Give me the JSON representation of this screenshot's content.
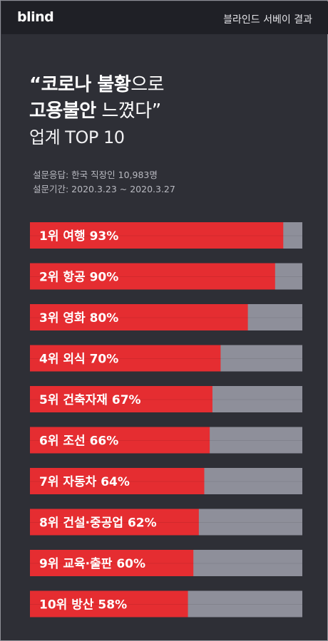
{
  "header": {
    "logo": "blind",
    "title": "블라인드 서베이 결과"
  },
  "headline": {
    "line1_bold": "“코로나 불황",
    "line1_rest": "으로",
    "line2_bold": "고용불안",
    "line2_rest": " 느꼈다”",
    "line3": "업계 TOP 10"
  },
  "survey": {
    "respondents": "설문응답: 한국 직장인 10,983명",
    "period": "설문기간: 2020.3.23 ~ 2020.3.27"
  },
  "colors": {
    "bar": "#e52d31",
    "bar_bg": "#8e8f9a",
    "background": "#2e2f36"
  },
  "chart_data": {
    "type": "bar",
    "orientation": "horizontal",
    "categories": [
      "여행",
      "항공",
      "영화",
      "외식",
      "건축자재",
      "조선",
      "자동차",
      "건설·중공업",
      "교육·출판",
      "방산"
    ],
    "ranks": [
      "1위",
      "2위",
      "3위",
      "4위",
      "5위",
      "6위",
      "7위",
      "8위",
      "9위",
      "10위"
    ],
    "values": [
      93,
      90,
      80,
      70,
      67,
      66,
      64,
      62,
      60,
      58
    ],
    "labels": [
      "1위  여행 93%",
      "2위  항공 90%",
      "3위  영화 80%",
      "4위  외식 70%",
      "5위  건축자재 67%",
      "6위  조선 66%",
      "7위  자동차 64%",
      "8위  건설·중공업 62%",
      "9위  교육·출판 60%",
      "10위  방산 58%"
    ],
    "xlim": [
      0,
      100
    ],
    "grid": false,
    "legend": "none"
  }
}
